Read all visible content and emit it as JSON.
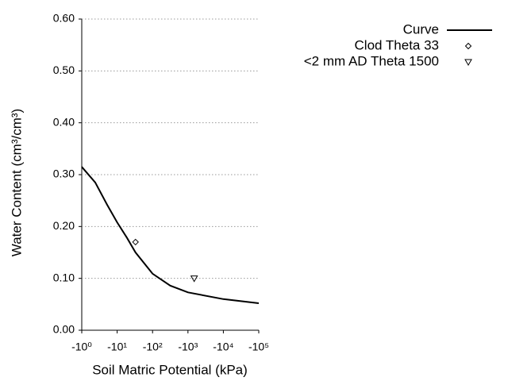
{
  "chart_data": {
    "type": "line",
    "xlabel": "Soil Matric Potential (kPa)",
    "ylabel": "Water Content (cm³/cm³)",
    "xscale": "log",
    "xlim": [
      -1,
      -100000
    ],
    "xticks": [
      {
        "value": -1,
        "label": "-10⁰"
      },
      {
        "value": -10,
        "label": "-10¹"
      },
      {
        "value": -100,
        "label": "-10²"
      },
      {
        "value": -1000,
        "label": "-10³"
      },
      {
        "value": -10000,
        "label": "-10⁴"
      },
      {
        "value": -100000,
        "label": "-10⁵"
      }
    ],
    "ylim": [
      0,
      0.6
    ],
    "yticks": [
      {
        "value": 0,
        "label": "0.00"
      },
      {
        "value": 0.1,
        "label": "0.10"
      },
      {
        "value": 0.2,
        "label": "0.20"
      },
      {
        "value": 0.3,
        "label": "0.30"
      },
      {
        "value": 0.4,
        "label": "0.40"
      },
      {
        "value": 0.5,
        "label": "0.50"
      },
      {
        "value": 0.6,
        "label": "0.60"
      }
    ],
    "grid": true,
    "legend": "upper right",
    "series": [
      {
        "name": "Curve",
        "color": "#000000",
        "x": [
          -1,
          -2.4,
          -5.2,
          -10,
          -19,
          -33,
          -100,
          -316,
          -1000,
          -10000,
          -100000
        ],
        "values": [
          0.315,
          0.285,
          0.242,
          0.208,
          0.178,
          0.15,
          0.109,
          0.086,
          0.073,
          0.06,
          0.052
        ]
      },
      {
        "name": "Clod Theta 33",
        "color": "#000000",
        "marker": "diamond",
        "x": [
          -33
        ],
        "values": [
          0.17
        ]
      },
      {
        "name": "<2 mm AD Theta 1500",
        "color": "#000000",
        "marker": "triangle-down",
        "x": [
          -1500
        ],
        "values": [
          0.1
        ]
      }
    ]
  }
}
